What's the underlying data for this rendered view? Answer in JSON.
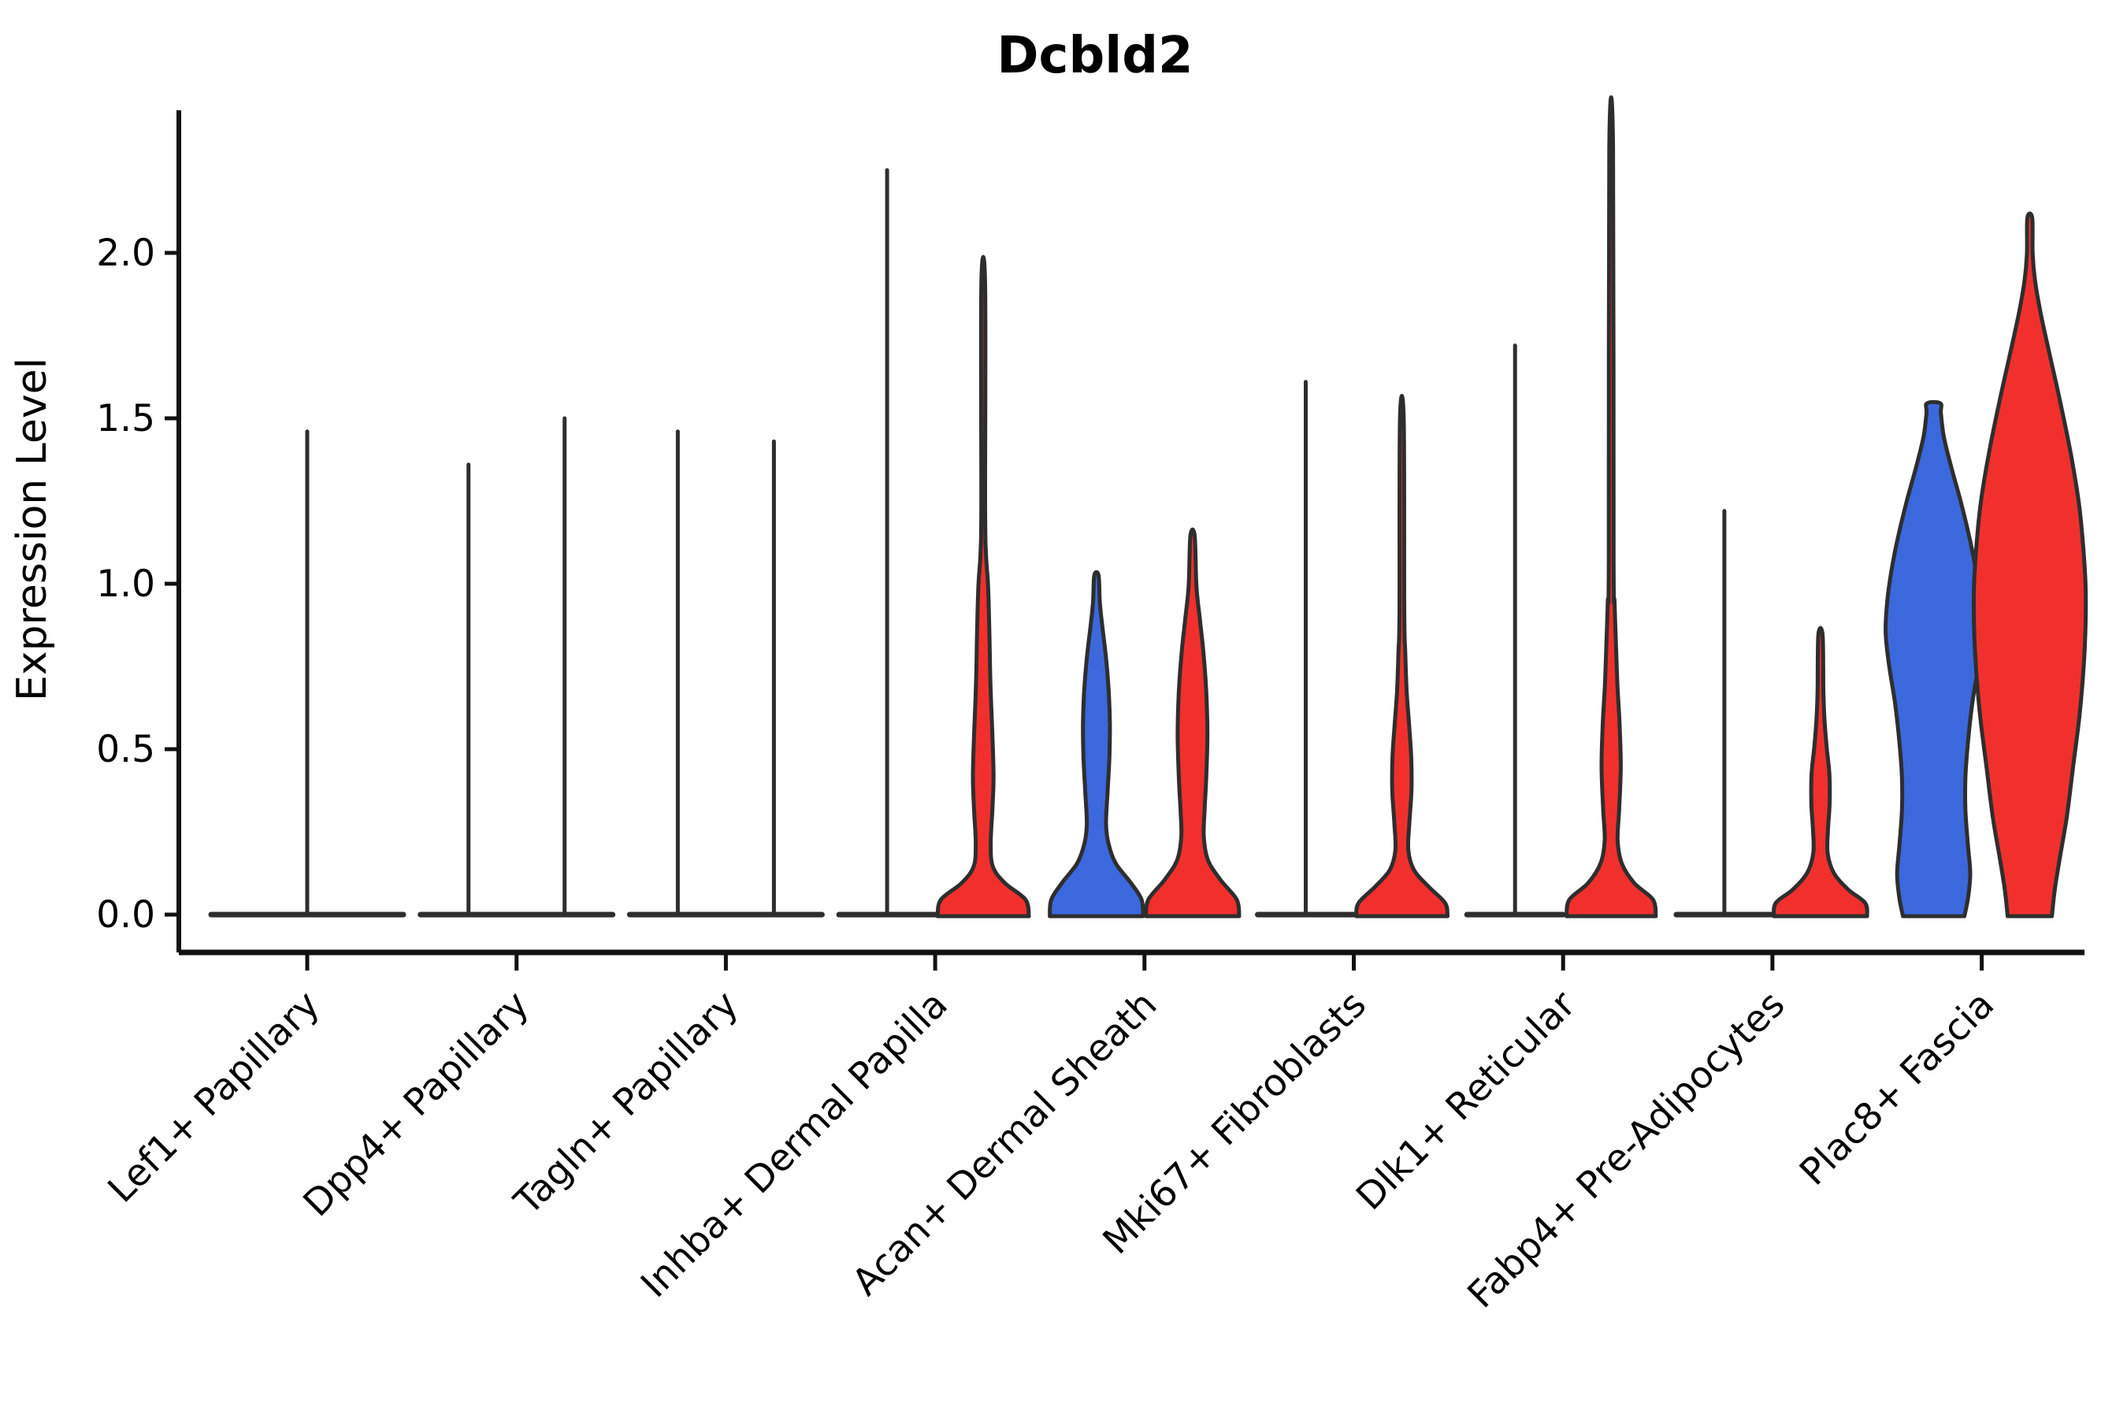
{
  "title": "Dcbld2",
  "colors": {
    "blue": "#3C68DE",
    "red": "#F1302D",
    "outline": "#2E2E2E",
    "axis": "#111111",
    "text": "#000000",
    "background": "#ffffff"
  },
  "chart_data": {
    "type": "violin",
    "title": "Dcbld2",
    "xlabel": "",
    "ylabel": "Expression Level",
    "ylim": [
      -0.11,
      2.42
    ],
    "yticks": [
      0.0,
      0.5,
      1.0,
      1.5,
      2.0
    ],
    "ytick_labels": [
      "0.0",
      "0.5",
      "1.0",
      "1.5",
      "2.0"
    ],
    "grid": false,
    "legend": "none",
    "groups": [
      "blue",
      "red"
    ],
    "categories": [
      "Lef1+ Papillary",
      "Dpp4+ Papillary",
      "Tagln+ Papillary",
      "Inhba+ Dermal Papilla",
      "Acan+ Dermal Sheath",
      "Mki67+ Fibroblasts",
      "Dlk1+ Reticular",
      "Fabp4+ Pre-Adipocytes",
      "Plac8+ Fascia"
    ],
    "violins": [
      {
        "category_index": 0,
        "category": "Lef1+ Papillary",
        "group": "none",
        "type": "flat",
        "offset": 0,
        "flat_halfwidth": 2.0,
        "max_expression": 1.46
      },
      {
        "category_index": 1,
        "category": "Dpp4+ Papillary",
        "group": "blue",
        "type": "flat",
        "offset": -1,
        "flat_halfwidth": 1.0,
        "max_expression": 1.36
      },
      {
        "category_index": 1,
        "category": "Dpp4+ Papillary",
        "group": "red",
        "type": "flat",
        "offset": 1,
        "flat_halfwidth": 1.0,
        "max_expression": 1.5
      },
      {
        "category_index": 2,
        "category": "Tagln+ Papillary",
        "group": "blue",
        "type": "flat",
        "offset": -1,
        "flat_halfwidth": 1.0,
        "max_expression": 1.46
      },
      {
        "category_index": 2,
        "category": "Tagln+ Papillary",
        "group": "red",
        "type": "flat",
        "offset": 1,
        "flat_halfwidth": 1.0,
        "max_expression": 1.43
      },
      {
        "category_index": 3,
        "category": "Inhba+ Dermal Papilla",
        "group": "blue",
        "type": "flat",
        "offset": -1,
        "flat_halfwidth": 1.0,
        "max_expression": 2.25
      },
      {
        "category_index": 3,
        "category": "Inhba+ Dermal Papilla",
        "group": "red",
        "type": "shaped",
        "offset": 1,
        "max_expression": 1.91,
        "profile": [
          [
            0,
            0.95
          ],
          [
            0.05,
            0.88
          ],
          [
            0.1,
            0.45
          ],
          [
            0.15,
            0.2
          ],
          [
            0.22,
            0.155
          ],
          [
            0.32,
            0.19
          ],
          [
            0.42,
            0.215
          ],
          [
            0.55,
            0.19
          ],
          [
            0.7,
            0.15
          ],
          [
            0.85,
            0.13
          ],
          [
            1.0,
            0.1
          ],
          [
            1.1,
            0.055
          ],
          [
            1.25,
            0.04
          ],
          [
            1.91,
            0.04
          ]
        ]
      },
      {
        "category_index": 4,
        "category": "Acan+ Dermal Sheath",
        "group": "blue",
        "type": "shaped",
        "offset": -1,
        "max_expression": 1.03,
        "profile": [
          [
            0,
            0.97
          ],
          [
            0.05,
            0.94
          ],
          [
            0.1,
            0.72
          ],
          [
            0.16,
            0.4
          ],
          [
            0.22,
            0.25
          ],
          [
            0.28,
            0.2
          ],
          [
            0.38,
            0.235
          ],
          [
            0.48,
            0.27
          ],
          [
            0.58,
            0.28
          ],
          [
            0.68,
            0.255
          ],
          [
            0.78,
            0.2
          ],
          [
            0.88,
            0.12
          ],
          [
            0.95,
            0.07
          ],
          [
            1.03,
            0.045
          ]
        ]
      },
      {
        "category_index": 4,
        "category": "Acan+ Dermal Sheath",
        "group": "red",
        "type": "shaped",
        "offset": 1,
        "max_expression": 1.15,
        "profile": [
          [
            0,
            0.97
          ],
          [
            0.05,
            0.92
          ],
          [
            0.11,
            0.58
          ],
          [
            0.17,
            0.32
          ],
          [
            0.24,
            0.235
          ],
          [
            0.32,
            0.25
          ],
          [
            0.42,
            0.285
          ],
          [
            0.55,
            0.31
          ],
          [
            0.68,
            0.285
          ],
          [
            0.8,
            0.225
          ],
          [
            0.9,
            0.15
          ],
          [
            1.0,
            0.08
          ],
          [
            1.15,
            0.045
          ]
        ]
      },
      {
        "category_index": 5,
        "category": "Mki67+ Fibroblasts",
        "group": "blue",
        "type": "flat",
        "offset": -1,
        "flat_halfwidth": 1.0,
        "max_expression": 1.61
      },
      {
        "category_index": 5,
        "category": "Mki67+ Fibroblasts",
        "group": "red",
        "type": "shaped",
        "offset": 1,
        "max_expression": 1.5,
        "profile": [
          [
            0,
            0.95
          ],
          [
            0.04,
            0.9
          ],
          [
            0.09,
            0.55
          ],
          [
            0.14,
            0.25
          ],
          [
            0.2,
            0.135
          ],
          [
            0.28,
            0.155
          ],
          [
            0.38,
            0.2
          ],
          [
            0.48,
            0.195
          ],
          [
            0.58,
            0.15
          ],
          [
            0.68,
            0.1
          ],
          [
            0.8,
            0.07
          ],
          [
            0.92,
            0.05
          ],
          [
            1.5,
            0.04
          ]
        ]
      },
      {
        "category_index": 6,
        "category": "Dlk1+ Reticular",
        "group": "blue",
        "type": "flat",
        "offset": -1,
        "flat_halfwidth": 1.0,
        "max_expression": 1.72
      },
      {
        "category_index": 6,
        "category": "Dlk1+ Reticular",
        "group": "red",
        "type": "shaped",
        "offset": 1,
        "max_expression": 2.32,
        "profile": [
          [
            0,
            0.93
          ],
          [
            0.05,
            0.87
          ],
          [
            0.1,
            0.48
          ],
          [
            0.16,
            0.22
          ],
          [
            0.23,
            0.135
          ],
          [
            0.32,
            0.165
          ],
          [
            0.45,
            0.2
          ],
          [
            0.58,
            0.175
          ],
          [
            0.7,
            0.13
          ],
          [
            0.82,
            0.1
          ],
          [
            0.95,
            0.07
          ],
          [
            1.08,
            0.05
          ],
          [
            2.32,
            0.04
          ]
        ]
      },
      {
        "category_index": 7,
        "category": "Fabp4+ Pre-Adipocytes",
        "group": "blue",
        "type": "flat",
        "offset": -1,
        "flat_halfwidth": 1.0,
        "max_expression": 1.22
      },
      {
        "category_index": 7,
        "category": "Fabp4+ Pre-Adipocytes",
        "group": "red",
        "type": "shaped",
        "offset": 1,
        "max_expression": 0.85,
        "profile": [
          [
            0,
            0.97
          ],
          [
            0.04,
            0.93
          ],
          [
            0.08,
            0.58
          ],
          [
            0.13,
            0.28
          ],
          [
            0.19,
            0.15
          ],
          [
            0.26,
            0.155
          ],
          [
            0.34,
            0.19
          ],
          [
            0.43,
            0.185
          ],
          [
            0.51,
            0.13
          ],
          [
            0.59,
            0.085
          ],
          [
            0.68,
            0.06
          ],
          [
            0.85,
            0.045
          ]
        ]
      },
      {
        "category_index": 8,
        "category": "Plac8+ Fascia",
        "group": "blue",
        "type": "shaped",
        "offset": -1,
        "max_expression": 1.55,
        "profile": [
          [
            0,
            0.64
          ],
          [
            0.06,
            0.72
          ],
          [
            0.13,
            0.76
          ],
          [
            0.22,
            0.71
          ],
          [
            0.32,
            0.66
          ],
          [
            0.42,
            0.66
          ],
          [
            0.52,
            0.71
          ],
          [
            0.64,
            0.8
          ],
          [
            0.76,
            0.93
          ],
          [
            0.86,
            1.0
          ],
          [
            0.96,
            0.96
          ],
          [
            1.06,
            0.86
          ],
          [
            1.16,
            0.72
          ],
          [
            1.26,
            0.55
          ],
          [
            1.36,
            0.36
          ],
          [
            1.45,
            0.21
          ],
          [
            1.52,
            0.15
          ],
          [
            1.55,
            0.14
          ]
        ]
      },
      {
        "category_index": 8,
        "category": "Plac8+ Fascia",
        "group": "red",
        "type": "shaped",
        "offset": 1,
        "max_expression": 2.11,
        "profile": [
          [
            0,
            0.46
          ],
          [
            0.08,
            0.52
          ],
          [
            0.18,
            0.63
          ],
          [
            0.3,
            0.77
          ],
          [
            0.45,
            0.9
          ],
          [
            0.6,
            1.03
          ],
          [
            0.75,
            1.12
          ],
          [
            0.88,
            1.16
          ],
          [
            1.0,
            1.16
          ],
          [
            1.12,
            1.11
          ],
          [
            1.25,
            1.02
          ],
          [
            1.4,
            0.85
          ],
          [
            1.55,
            0.64
          ],
          [
            1.7,
            0.41
          ],
          [
            1.82,
            0.23
          ],
          [
            1.92,
            0.11
          ],
          [
            2.0,
            0.06
          ],
          [
            2.11,
            0.05
          ]
        ]
      }
    ]
  }
}
